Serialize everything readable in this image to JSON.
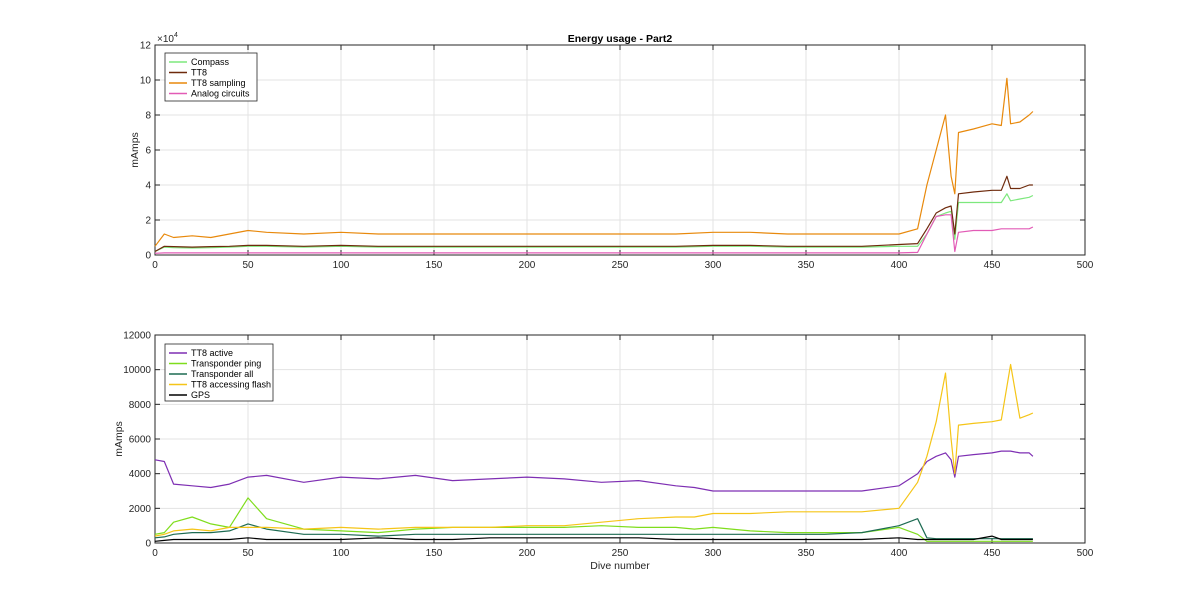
{
  "chart_data": [
    {
      "type": "line",
      "title": "Energy usage - Part2",
      "xlabel": "",
      "ylabel": "mAmps",
      "xlim": [
        0,
        500
      ],
      "ylim": [
        0,
        12
      ],
      "y_exponent_label": "×10",
      "y_exponent": "4",
      "x_ticks": [
        "0",
        "50",
        "100",
        "150",
        "200",
        "250",
        "300",
        "350",
        "400",
        "450",
        "500"
      ],
      "y_ticks": [
        "0",
        "2",
        "4",
        "6",
        "8",
        "10",
        "12"
      ],
      "grid": true,
      "legend_position": "top-left",
      "x": [
        0,
        5,
        10,
        20,
        30,
        40,
        50,
        60,
        80,
        100,
        120,
        140,
        160,
        180,
        200,
        220,
        240,
        260,
        280,
        300,
        320,
        340,
        360,
        380,
        400,
        410,
        415,
        420,
        425,
        428,
        430,
        432,
        440,
        450,
        455,
        458,
        460,
        465,
        470,
        472
      ],
      "series": [
        {
          "name": "Compass",
          "color": "#7de87d",
          "values": [
            0.2,
            0.45,
            0.42,
            0.4,
            0.42,
            0.45,
            0.5,
            0.5,
            0.45,
            0.5,
            0.45,
            0.45,
            0.45,
            0.45,
            0.45,
            0.45,
            0.45,
            0.45,
            0.45,
            0.5,
            0.5,
            0.45,
            0.45,
            0.45,
            0.5,
            0.5,
            1.2,
            2.2,
            2.4,
            2.5,
            0.9,
            3.0,
            3.0,
            3.0,
            3.0,
            3.5,
            3.1,
            3.2,
            3.3,
            3.4
          ]
        },
        {
          "name": "TT8",
          "color": "#6e2a0c",
          "values": [
            0.2,
            0.5,
            0.48,
            0.45,
            0.48,
            0.5,
            0.55,
            0.55,
            0.5,
            0.55,
            0.5,
            0.5,
            0.5,
            0.5,
            0.5,
            0.5,
            0.5,
            0.5,
            0.5,
            0.55,
            0.55,
            0.5,
            0.5,
            0.5,
            0.6,
            0.65,
            1.5,
            2.4,
            2.7,
            2.8,
            1.2,
            3.5,
            3.6,
            3.7,
            3.7,
            4.5,
            3.8,
            3.8,
            4.0,
            4.0
          ]
        },
        {
          "name": "TT8 sampling",
          "color": "#e8890c",
          "values": [
            0.5,
            1.2,
            1.0,
            1.1,
            1.0,
            1.2,
            1.4,
            1.3,
            1.2,
            1.3,
            1.2,
            1.2,
            1.2,
            1.2,
            1.2,
            1.2,
            1.2,
            1.2,
            1.2,
            1.3,
            1.3,
            1.2,
            1.2,
            1.2,
            1.2,
            1.5,
            4.0,
            6.0,
            8.0,
            4.5,
            3.5,
            7.0,
            7.2,
            7.5,
            7.4,
            10.1,
            7.5,
            7.6,
            8.0,
            8.2
          ]
        },
        {
          "name": "Analog circuits",
          "color": "#e25bb6",
          "values": [
            0.1,
            0.12,
            0.12,
            0.12,
            0.12,
            0.12,
            0.12,
            0.12,
            0.12,
            0.12,
            0.12,
            0.12,
            0.12,
            0.12,
            0.12,
            0.12,
            0.12,
            0.12,
            0.12,
            0.12,
            0.12,
            0.12,
            0.12,
            0.12,
            0.12,
            0.15,
            1.2,
            2.2,
            2.3,
            2.3,
            0.2,
            1.3,
            1.4,
            1.4,
            1.5,
            1.5,
            1.5,
            1.5,
            1.5,
            1.6
          ]
        }
      ]
    },
    {
      "type": "line",
      "title": "",
      "xlabel": "Dive number",
      "ylabel": "mAmps",
      "xlim": [
        0,
        500
      ],
      "ylim": [
        0,
        12000
      ],
      "x_ticks": [
        "0",
        "50",
        "100",
        "150",
        "200",
        "250",
        "300",
        "350",
        "400",
        "450",
        "500"
      ],
      "y_ticks": [
        "0",
        "2000",
        "4000",
        "6000",
        "8000",
        "10000",
        "12000"
      ],
      "grid": true,
      "legend_position": "top-left",
      "x": [
        0,
        5,
        10,
        20,
        30,
        40,
        50,
        60,
        80,
        100,
        120,
        140,
        160,
        180,
        200,
        220,
        240,
        260,
        280,
        290,
        300,
        320,
        340,
        360,
        380,
        400,
        410,
        415,
        420,
        425,
        428,
        430,
        432,
        440,
        450,
        455,
        460,
        465,
        470,
        472
      ],
      "series": [
        {
          "name": "TT8 active",
          "color": "#7e2fb3",
          "values": [
            4800,
            4700,
            3400,
            3300,
            3200,
            3400,
            3800,
            3900,
            3500,
            3800,
            3700,
            3900,
            3600,
            3700,
            3800,
            3700,
            3500,
            3600,
            3300,
            3200,
            3000,
            3000,
            3000,
            3000,
            3000,
            3300,
            4000,
            4700,
            5000,
            5200,
            4800,
            3800,
            5000,
            5100,
            5200,
            5300,
            5300,
            5200,
            5200,
            5000
          ]
        },
        {
          "name": "Transponder ping",
          "color": "#7fdd1c",
          "values": [
            500,
            600,
            1200,
            1500,
            1100,
            900,
            2600,
            1400,
            800,
            700,
            600,
            800,
            900,
            900,
            900,
            900,
            1000,
            900,
            900,
            800,
            900,
            700,
            600,
            600,
            600,
            900,
            500,
            100,
            100,
            100,
            100,
            100,
            100,
            100,
            100,
            100,
            100,
            100,
            100,
            100
          ]
        },
        {
          "name": "Transponder all",
          "color": "#1d6b52",
          "values": [
            300,
            350,
            500,
            600,
            600,
            700,
            1100,
            800,
            500,
            500,
            400,
            500,
            500,
            500,
            500,
            500,
            500,
            500,
            500,
            500,
            500,
            500,
            500,
            500,
            600,
            1000,
            1400,
            300,
            250,
            250,
            250,
            250,
            250,
            250,
            250,
            250,
            250,
            250,
            250,
            250
          ]
        },
        {
          "name": "TT8 accessing flash",
          "color": "#f5c518",
          "values": [
            400,
            500,
            700,
            800,
            700,
            900,
            900,
            900,
            800,
            900,
            800,
            900,
            900,
            900,
            1000,
            1000,
            1200,
            1400,
            1500,
            1500,
            1700,
            1700,
            1800,
            1800,
            1800,
            2000,
            3500,
            5000,
            7000,
            9800,
            6000,
            4000,
            6800,
            6900,
            7000,
            7100,
            10300,
            7200,
            7400,
            7500
          ]
        },
        {
          "name": "GPS",
          "color": "#000000",
          "values": [
            100,
            150,
            200,
            200,
            200,
            200,
            300,
            200,
            200,
            200,
            300,
            200,
            200,
            300,
            300,
            300,
            300,
            300,
            200,
            200,
            200,
            200,
            200,
            200,
            200,
            300,
            200,
            200,
            200,
            200,
            200,
            200,
            200,
            200,
            400,
            200,
            200,
            200,
            200,
            200
          ]
        }
      ]
    }
  ]
}
